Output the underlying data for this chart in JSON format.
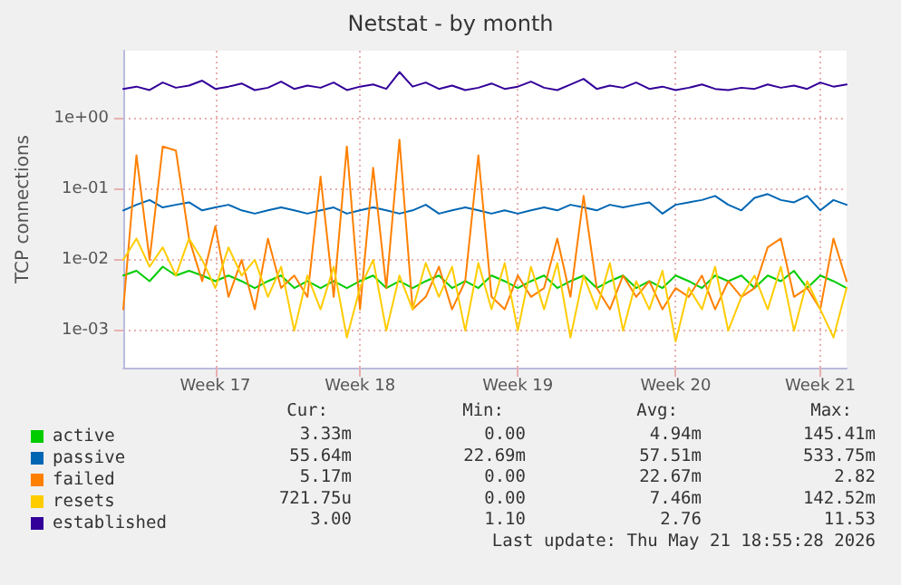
{
  "chart_data": {
    "type": "line",
    "title": "Netstat - by month",
    "ylabel": "TCP connections",
    "log": "y",
    "grid": true,
    "legend": "bottom left",
    "marker": "none",
    "line_style": "solid",
    "categories": [
      null,
      null,
      null,
      null,
      null,
      null,
      null,
      "Week 17",
      null,
      null,
      null,
      null,
      null,
      null,
      null,
      null,
      null,
      null,
      "Week 18",
      null,
      null,
      null,
      null,
      null,
      null,
      null,
      null,
      null,
      null,
      null,
      "Week 19",
      null,
      null,
      null,
      null,
      null,
      null,
      null,
      null,
      null,
      null,
      null,
      "Week 20",
      null,
      null,
      null,
      null,
      null,
      null,
      null,
      null,
      null,
      null,
      "Week 21",
      null,
      null
    ],
    "ylim": [
      0.0003,
      9
    ],
    "yticks": [
      {
        "value": 0.001,
        "label": "1e-03"
      },
      {
        "value": 0.01,
        "label": "1e-02"
      },
      {
        "value": 0.1,
        "label": "1e-01"
      },
      {
        "value": 1,
        "label": "1e+00"
      }
    ],
    "series": [
      {
        "name": "active",
        "color": "#00cc00",
        "values": [
          0.006,
          0.007,
          0.005,
          0.008,
          0.006,
          0.007,
          0.006,
          0.005,
          0.006,
          0.005,
          0.004,
          0.005,
          0.006,
          0.004,
          0.005,
          0.004,
          0.005,
          0.004,
          0.005,
          0.006,
          0.004,
          0.005,
          0.004,
          0.005,
          0.006,
          0.004,
          0.005,
          0.004,
          0.006,
          0.005,
          0.004,
          0.005,
          0.006,
          0.004,
          0.005,
          0.006,
          0.004,
          0.005,
          0.006,
          0.004,
          0.005,
          0.004,
          0.006,
          0.005,
          0.004,
          0.006,
          0.005,
          0.006,
          0.004,
          0.006,
          0.005,
          0.007,
          0.004,
          0.006,
          0.005,
          0.004
        ]
      },
      {
        "name": "passive",
        "color": "#0066b3",
        "values": [
          0.05,
          0.06,
          0.07,
          0.055,
          0.06,
          0.065,
          0.05,
          0.055,
          0.06,
          0.05,
          0.045,
          0.05,
          0.055,
          0.05,
          0.045,
          0.05,
          0.055,
          0.045,
          0.05,
          0.055,
          0.05,
          0.045,
          0.05,
          0.06,
          0.045,
          0.05,
          0.055,
          0.05,
          0.045,
          0.05,
          0.045,
          0.05,
          0.055,
          0.05,
          0.06,
          0.055,
          0.05,
          0.06,
          0.055,
          0.06,
          0.065,
          0.045,
          0.06,
          0.065,
          0.07,
          0.08,
          0.06,
          0.05,
          0.075,
          0.085,
          0.07,
          0.065,
          0.08,
          0.05,
          0.07,
          0.06
        ]
      },
      {
        "name": "failed",
        "color": "#ff8000",
        "values": [
          0.002,
          0.3,
          0.01,
          0.4,
          0.35,
          0.02,
          0.005,
          0.03,
          0.003,
          0.01,
          0.002,
          0.02,
          0.004,
          0.006,
          0.003,
          0.15,
          0.003,
          0.4,
          0.002,
          0.2,
          0.004,
          0.5,
          0.002,
          0.003,
          0.008,
          0.002,
          0.005,
          0.3,
          0.003,
          0.002,
          0.006,
          0.003,
          0.004,
          0.02,
          0.003,
          0.08,
          0.004,
          0.002,
          0.006,
          0.003,
          0.005,
          0.002,
          0.004,
          0.003,
          0.006,
          0.002,
          0.005,
          0.003,
          0.004,
          0.015,
          0.02,
          0.003,
          0.004,
          0.002,
          0.02,
          0.005
        ]
      },
      {
        "name": "resets",
        "color": "#ffcc00",
        "values": [
          0.01,
          0.02,
          0.008,
          0.015,
          0.006,
          0.02,
          0.01,
          0.004,
          0.015,
          0.006,
          0.01,
          0.003,
          0.008,
          0.001,
          0.006,
          0.002,
          0.008,
          0.0008,
          0.004,
          0.01,
          0.001,
          0.006,
          0.002,
          0.009,
          0.003,
          0.008,
          0.001,
          0.009,
          0.002,
          0.009,
          0.001,
          0.008,
          0.002,
          0.009,
          0.0008,
          0.006,
          0.002,
          0.009,
          0.001,
          0.005,
          0.002,
          0.007,
          0.0007,
          0.004,
          0.002,
          0.008,
          0.001,
          0.003,
          0.006,
          0.002,
          0.008,
          0.001,
          0.005,
          0.002,
          0.0008,
          0.004
        ]
      },
      {
        "name": "established",
        "color": "#330099",
        "values": [
          2.6,
          2.8,
          2.5,
          3.2,
          2.7,
          2.9,
          3.4,
          2.6,
          2.8,
          3.1,
          2.5,
          2.7,
          3.3,
          2.6,
          2.9,
          2.7,
          3.2,
          2.5,
          2.8,
          3.0,
          2.6,
          4.5,
          2.8,
          3.2,
          2.6,
          2.9,
          2.5,
          2.7,
          3.1,
          2.6,
          2.8,
          3.3,
          2.7,
          2.5,
          3.0,
          3.6,
          2.6,
          2.9,
          2.7,
          3.2,
          2.6,
          2.8,
          2.5,
          2.7,
          3.0,
          2.6,
          2.5,
          2.7,
          2.6,
          3.0,
          2.7,
          2.9,
          2.6,
          3.2,
          2.8,
          3.0
        ]
      }
    ],
    "annotations": [
      "Cur:",
      "Min:",
      "Avg:",
      "Max:",
      "3.33m",
      "0.00",
      "4.94m",
      "145.41m",
      "55.64m",
      "22.69m",
      "57.51m",
      "533.75m",
      "5.17m",
      "0.00",
      "22.67m",
      "2.82",
      "721.75u",
      "0.00",
      "7.46m",
      "142.52m",
      "3.00",
      "1.10",
      "2.76",
      "11.53",
      "Last update: Thu May 21 18:55:28 2026"
    ]
  }
}
